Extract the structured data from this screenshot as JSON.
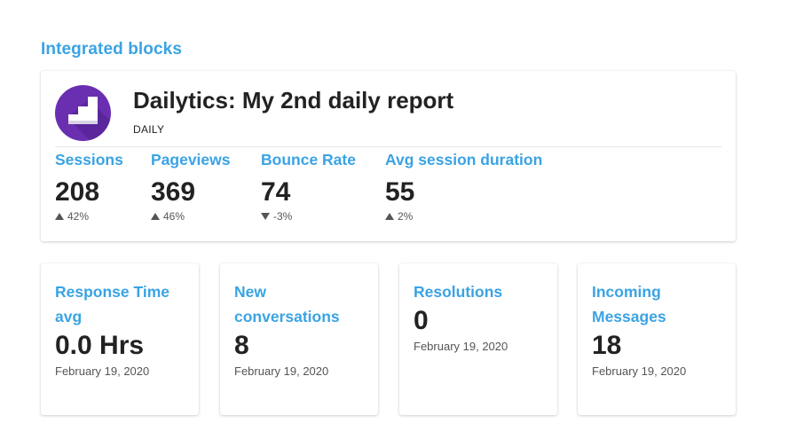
{
  "section": {
    "title": "Integrated blocks"
  },
  "report": {
    "title": "Dailytics: My 2nd daily report",
    "frequency": "DAILY",
    "logo_icon": "stairs-logo-icon",
    "logo_color": "#6a2fb0",
    "metrics": [
      {
        "label": "Sessions",
        "value": "208",
        "direction": "up",
        "change": "42%"
      },
      {
        "label": "Pageviews",
        "value": "369",
        "direction": "up",
        "change": "46%"
      },
      {
        "label": "Bounce Rate",
        "value": "74",
        "direction": "down",
        "change": "-3%"
      },
      {
        "label": "Avg session duration",
        "value": "55",
        "direction": "up",
        "change": "2%"
      }
    ]
  },
  "cards": [
    {
      "label": "Response Time avg",
      "value": "0.0 Hrs",
      "date": "February 19, 2020"
    },
    {
      "label": "New conversations",
      "value": "8",
      "date": "February 19, 2020"
    },
    {
      "label": "Resolutions",
      "value": "0",
      "date": "February 19, 2020"
    },
    {
      "label": "Incoming Messages",
      "value": "18",
      "date": "February 19, 2020"
    }
  ],
  "colors": {
    "accent": "#3aa3e3",
    "text": "#222222",
    "muted": "#555555"
  }
}
